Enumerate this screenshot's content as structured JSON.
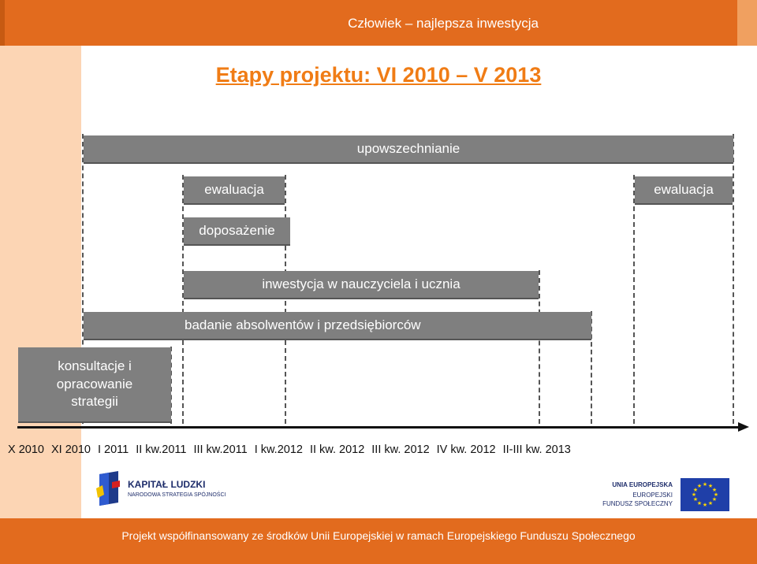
{
  "header": {
    "title": "Człowiek – najlepsza inwestycja"
  },
  "title": "Etapy projektu: VI 2010 – V 2013",
  "bars": {
    "upowszechnianie": "upowszechnianie",
    "ewaluacja_1": "ewaluacja",
    "ewaluacja_2": "ewaluacja",
    "doposazenie": "doposażenie",
    "inwestycja": "inwestycja w nauczyciela i ucznia",
    "badanie": "badanie absolwentów i przedsiębiorców",
    "konsultacje": "konsultacje i opracowanie strategii"
  },
  "timeline": [
    "X 2010",
    "XI 2010",
    "I 2011",
    "II kw.2011",
    "III kw.2011",
    "I kw.2012",
    "II kw. 2012",
    "III kw. 2012",
    "IV kw. 2012",
    "II-III kw. 2013"
  ],
  "logos": {
    "kapital_name": "KAPITAŁ LUDZKI",
    "kapital_sub": "NARODOWA STRATEGIA SPÓJNOŚCI",
    "ue_line1": "UNIA EUROPEJSKA",
    "ue_line2": "EUROPEJSKI",
    "ue_line3": "FUNDUSZ SPOŁECZNY"
  },
  "footer": {
    "text": "Projekt współfinansowany ze środków Unii Europejskiej w ramach Europejskiego Funduszu Społecznego"
  },
  "colors": {
    "orange": "#e26b1e",
    "peach": "#fcd5b4",
    "bar_gray": "#7f7f7f",
    "title_orange": "#f07c15"
  }
}
